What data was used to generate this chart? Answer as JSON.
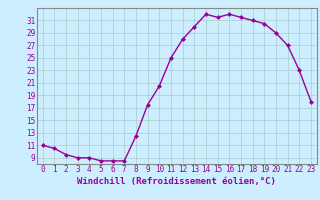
{
  "x": [
    0,
    1,
    2,
    3,
    4,
    5,
    6,
    7,
    8,
    9,
    10,
    11,
    12,
    13,
    14,
    15,
    16,
    17,
    18,
    19,
    20,
    21,
    22,
    23
  ],
  "y": [
    11,
    10.5,
    9.5,
    9,
    9,
    8.5,
    8.5,
    8.5,
    12.5,
    17.5,
    20.5,
    25,
    28,
    30,
    32,
    31.5,
    32,
    31.5,
    31,
    30.5,
    29,
    27,
    23,
    18
  ],
  "line_color": "#990099",
  "marker": "D",
  "marker_size": 2.0,
  "bg_color": "#cceeff",
  "grid_color": "#aacccc",
  "xlabel": "Windchill (Refroidissement éolien,°C)",
  "xlabel_fontsize": 6.5,
  "ylabel_ticks": [
    9,
    11,
    13,
    15,
    17,
    19,
    21,
    23,
    25,
    27,
    29,
    31
  ],
  "ylim": [
    8.0,
    33.0
  ],
  "xlim": [
    -0.5,
    23.5
  ],
  "xticks": [
    0,
    1,
    2,
    3,
    4,
    5,
    6,
    7,
    8,
    9,
    10,
    11,
    12,
    13,
    14,
    15,
    16,
    17,
    18,
    19,
    20,
    21,
    22,
    23
  ],
  "tick_fontsize": 5.5,
  "line_width": 1.0,
  "spine_color": "#888888"
}
